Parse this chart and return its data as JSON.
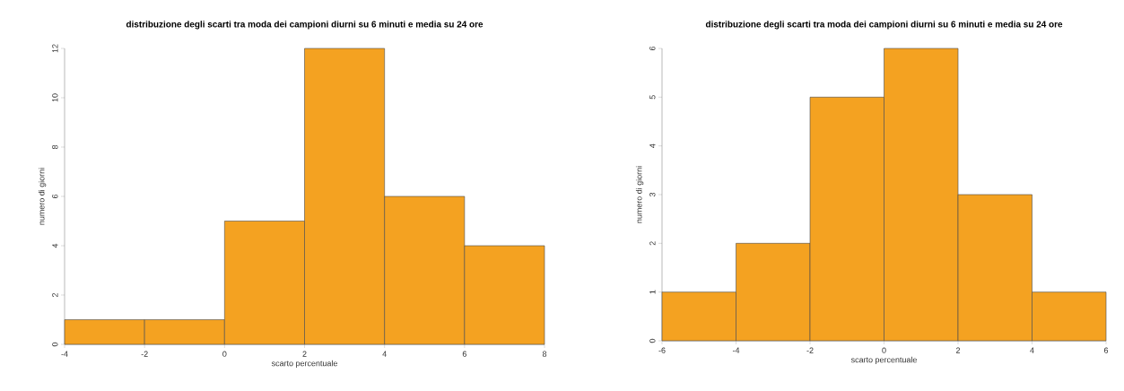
{
  "chart_data": [
    {
      "type": "histogram",
      "title": "distribuzione degli scarti tra moda dei campioni diurni su 6 minuti e media su 24 ore",
      "xlabel": "scarto percentuale",
      "ylabel": "numero di giorni",
      "bins": [
        -4,
        -2,
        0,
        2,
        4,
        6,
        8
      ],
      "values": [
        1,
        1,
        5,
        12,
        6,
        4
      ],
      "color": "#f4a221",
      "xlim": [
        -4,
        8
      ],
      "ylim": [
        0,
        12
      ],
      "xticks": [
        -4,
        -2,
        0,
        2,
        4,
        6,
        8
      ],
      "yticks": [
        0,
        2,
        4,
        6,
        8,
        10,
        12
      ]
    },
    {
      "type": "histogram",
      "title": "distribuzione degli scarti tra moda dei campioni diurni su 6 minuti e media su 24 ore",
      "xlabel": "scarto percentuale",
      "ylabel": "numero di giorni",
      "bins": [
        -6,
        -4,
        -2,
        0,
        2,
        4,
        6
      ],
      "values": [
        1,
        2,
        5,
        6,
        3,
        1
      ],
      "color": "#f4a221",
      "xlim": [
        -6,
        6
      ],
      "ylim": [
        0,
        6
      ],
      "xticks": [
        -6,
        -4,
        -2,
        0,
        2,
        4,
        6
      ],
      "yticks": [
        0,
        1,
        2,
        3,
        4,
        5,
        6
      ]
    }
  ]
}
